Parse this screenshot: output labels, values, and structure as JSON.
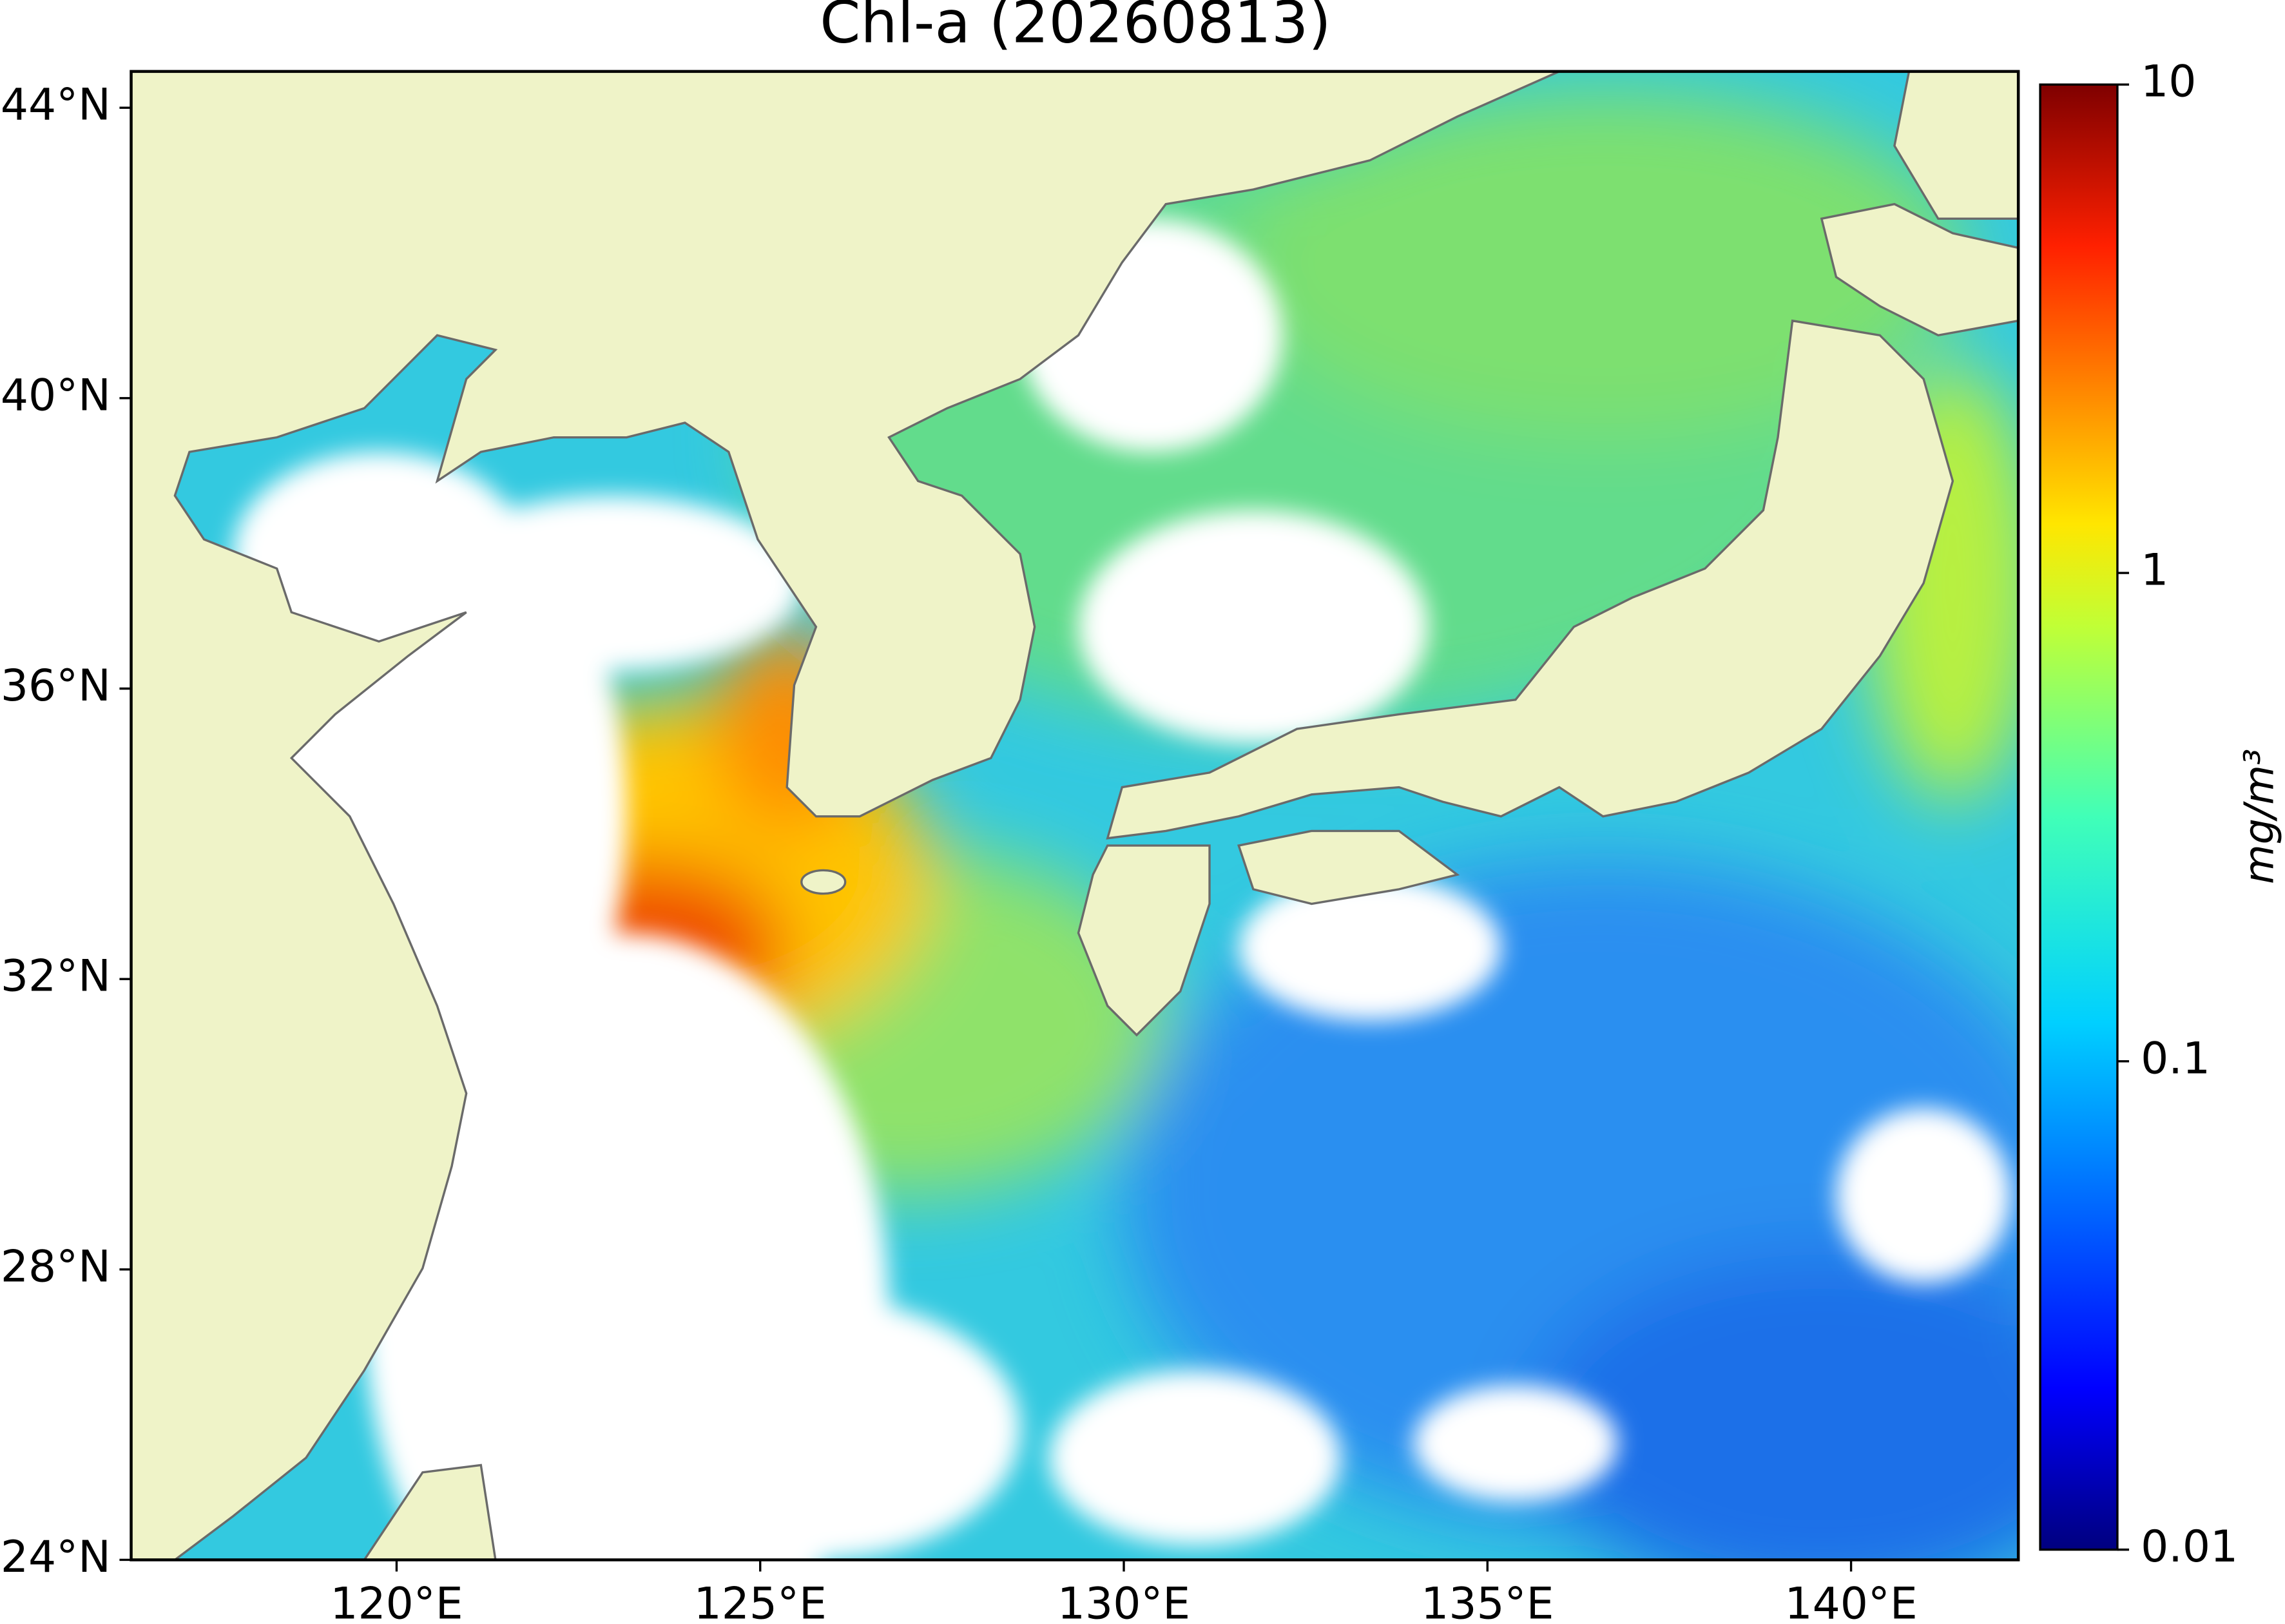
{
  "title": "Chl-a (20260813)",
  "map": {
    "xlim": [
      116.35,
      142.3
    ],
    "ylim": [
      24,
      44.5
    ],
    "xticks": [
      {
        "value": 120,
        "label": "120°E"
      },
      {
        "value": 125,
        "label": "125°E"
      },
      {
        "value": 130,
        "label": "130°E"
      },
      {
        "value": 135,
        "label": "135°E"
      },
      {
        "value": 140,
        "label": "140°E"
      }
    ],
    "yticks": [
      {
        "value": 24,
        "label": "24°N"
      },
      {
        "value": 28,
        "label": "28°N"
      },
      {
        "value": 32,
        "label": "32°N"
      },
      {
        "value": 36,
        "label": "36°N"
      },
      {
        "value": 40,
        "label": "40°N"
      },
      {
        "value": 44,
        "label": "44°N"
      }
    ]
  },
  "colorbar": {
    "label": "mg/m³",
    "scale": "log",
    "lim": [
      0.01,
      10
    ],
    "ticks": [
      0.01,
      0.1,
      1,
      10
    ]
  }
}
